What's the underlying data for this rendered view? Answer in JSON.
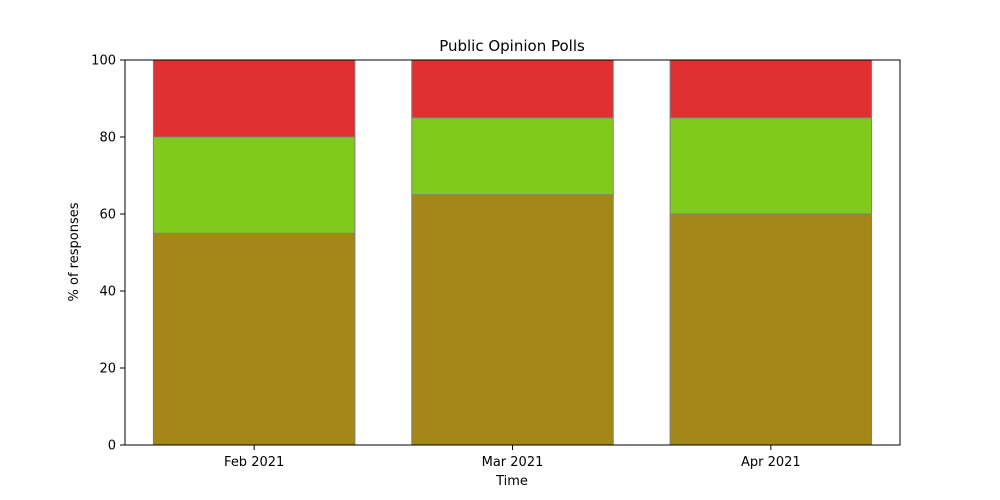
{
  "chart_data": {
    "type": "bar",
    "stacked": true,
    "title": "Public Opinion Polls",
    "xlabel": "Time",
    "ylabel": "% of responses",
    "categories": [
      "Feb 2021",
      "Mar 2021",
      "Apr 2021"
    ],
    "series": [
      {
        "color": "#a58618",
        "values": [
          55,
          65,
          60
        ]
      },
      {
        "color": "#82c91e",
        "values": [
          25,
          20,
          25
        ]
      },
      {
        "color": "#e03131",
        "values": [
          20,
          15,
          15
        ]
      }
    ],
    "bar_edge_color": "#808080",
    "ylim": [
      0,
      100
    ],
    "yticks": [
      0,
      20,
      40,
      60,
      80,
      100
    ],
    "grid": false,
    "legend": false
  }
}
